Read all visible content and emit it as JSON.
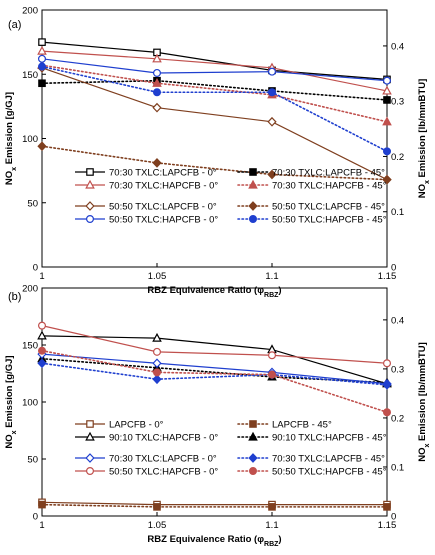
{
  "chart_data": [
    {
      "type": "line",
      "panel_label": "(a)",
      "xlabel_main": "RBZ Equivalence Ratio (φ",
      "xlabel_sub": "RBZ",
      "xlabel_end": ")",
      "ylabel_left_main": "NO",
      "ylabel_left_sub": "x",
      "ylabel_left_end": " Emission [g/GJ]",
      "ylabel_right_main": "NO",
      "ylabel_right_sub": "x",
      "ylabel_right_end": " Emission [lb/mmBTU]",
      "x_ticks": [
        "1",
        "1.05",
        "1.1",
        "1.15"
      ],
      "xlim": [
        1.0,
        1.15
      ],
      "ylim": [
        0,
        200
      ],
      "y_ticks": [
        "0",
        "50",
        "100",
        "150",
        "200"
      ],
      "ylim_right": [
        0,
        0.465
      ],
      "y_right_ticks": [
        "0",
        "0.1",
        "0.2",
        "0.3",
        "0.4"
      ],
      "grid": false,
      "legend_position": "lower-center",
      "series": [
        {
          "name": "70:30 TXLC:LAPCFB - 0°",
          "color": "#000000",
          "marker": "square",
          "fill": "none",
          "dash": "solid",
          "x": [
            1.0,
            1.05,
            1.1,
            1.15
          ],
          "y": [
            175,
            167,
            153,
            146
          ]
        },
        {
          "name": "70:30 TXLC:LAPCFB - 45°",
          "color": "#000000",
          "marker": "square",
          "fill": "filled",
          "dash": "dot",
          "x": [
            1.0,
            1.05,
            1.1,
            1.15
          ],
          "y": [
            143,
            145,
            137,
            130
          ]
        },
        {
          "name": "70:30 TXLC:HAPCFB - 0°",
          "color": "#c0504d",
          "marker": "triangle",
          "fill": "none",
          "dash": "solid",
          "x": [
            1.0,
            1.05,
            1.1,
            1.15
          ],
          "y": [
            168,
            162,
            155,
            137
          ]
        },
        {
          "name": "70:30 TXLC:HAPCFB - 45°",
          "color": "#c0504d",
          "marker": "triangle",
          "fill": "filled",
          "dash": "dot",
          "x": [
            1.0,
            1.05,
            1.1,
            1.15
          ],
          "y": [
            157,
            143,
            134,
            113
          ]
        },
        {
          "name": "50:50 TXLC:LAPCFB - 0°",
          "color": "#7f3f1f",
          "marker": "diamond",
          "fill": "none",
          "dash": "solid",
          "x": [
            1.0,
            1.05,
            1.1,
            1.15
          ],
          "y": [
            155,
            124,
            113,
            68
          ]
        },
        {
          "name": "50:50 TXLC:LAPCFB - 45°",
          "color": "#7f3f1f",
          "marker": "diamond",
          "fill": "filled",
          "dash": "dot",
          "x": [
            1.0,
            1.05,
            1.1,
            1.15
          ],
          "y": [
            94,
            81,
            72,
            68
          ]
        },
        {
          "name": "50:50 TXLC:HAPCFB - 0°",
          "color": "#1f3fcf",
          "marker": "circle",
          "fill": "none",
          "dash": "solid",
          "x": [
            1.0,
            1.05,
            1.1,
            1.15
          ],
          "y": [
            162,
            151,
            152,
            145
          ]
        },
        {
          "name": "50:50 TXLC:HAPCFB - 45°",
          "color": "#1f3fcf",
          "marker": "circle",
          "fill": "filled",
          "dash": "dot",
          "x": [
            1.0,
            1.05,
            1.1,
            1.15
          ],
          "y": [
            156,
            136,
            136,
            90
          ]
        }
      ]
    },
    {
      "type": "line",
      "panel_label": "(b)",
      "xlabel_main": "RBZ Equivalence Ratio (φ",
      "xlabel_sub": "RBZ",
      "xlabel_end": ")",
      "ylabel_left_main": "NO",
      "ylabel_left_sub": "x",
      "ylabel_left_end": " Emission [g/GJ]",
      "ylabel_right_main": "NO",
      "ylabel_right_sub": "x",
      "ylabel_right_end": " Emission [lb/mmBTU]",
      "x_ticks": [
        "1",
        "1.05",
        "1.1",
        "1.15"
      ],
      "xlim": [
        1.0,
        1.15
      ],
      "ylim": [
        0,
        200
      ],
      "y_ticks": [
        "0",
        "50",
        "100",
        "150",
        "200"
      ],
      "ylim_right": [
        0,
        0.465
      ],
      "y_right_ticks": [
        "0",
        "0.1",
        "0.2",
        "0.3",
        "0.4"
      ],
      "grid": false,
      "legend_position": "lower-center",
      "series": [
        {
          "name": "LAPCFB - 0°",
          "color": "#7f3f1f",
          "marker": "square",
          "fill": "none",
          "dash": "solid",
          "x": [
            1.0,
            1.05,
            1.1,
            1.15
          ],
          "y": [
            12,
            10,
            10,
            10
          ]
        },
        {
          "name": "LAPCFB - 45°",
          "color": "#7f3f1f",
          "marker": "square",
          "fill": "filled",
          "dash": "dot",
          "x": [
            1.0,
            1.05,
            1.1,
            1.15
          ],
          "y": [
            10,
            8,
            8,
            8
          ]
        },
        {
          "name": "90:10 TXLC:HAPCFB - 0°",
          "color": "#000000",
          "marker": "triangle",
          "fill": "none",
          "dash": "solid",
          "x": [
            1.0,
            1.05,
            1.1,
            1.15
          ],
          "y": [
            158,
            156,
            146,
            116
          ]
        },
        {
          "name": "90:10 TXLC:HAPCFB - 45°",
          "color": "#000000",
          "marker": "triangle",
          "fill": "filled",
          "dash": "dot",
          "x": [
            1.0,
            1.05,
            1.1,
            1.15
          ],
          "y": [
            138,
            130,
            122,
            117
          ]
        },
        {
          "name": "70:30 TXLC:LAPCFB - 0°",
          "color": "#1f3fcf",
          "marker": "diamond",
          "fill": "none",
          "dash": "solid",
          "x": [
            1.0,
            1.05,
            1.1,
            1.15
          ],
          "y": [
            142,
            134,
            126,
            116
          ]
        },
        {
          "name": "70:30 TXLC:LAPCFB - 45°",
          "color": "#1f3fcf",
          "marker": "diamond",
          "fill": "filled",
          "dash": "dot",
          "x": [
            1.0,
            1.05,
            1.1,
            1.15
          ],
          "y": [
            134,
            120,
            124,
            115
          ]
        },
        {
          "name": "50:50 TXLC:HAPCFB - 0°",
          "color": "#c0504d",
          "marker": "circle",
          "fill": "none",
          "dash": "solid",
          "x": [
            1.0,
            1.05,
            1.1,
            1.15
          ],
          "y": [
            167,
            144,
            141,
            134
          ]
        },
        {
          "name": "50:50 TXLC:HAPCFB - 45°",
          "color": "#c0504d",
          "marker": "circle",
          "fill": "filled",
          "dash": "dot",
          "x": [
            1.0,
            1.05,
            1.1,
            1.15
          ],
          "y": [
            145,
            126,
            124,
            91
          ]
        }
      ]
    }
  ]
}
